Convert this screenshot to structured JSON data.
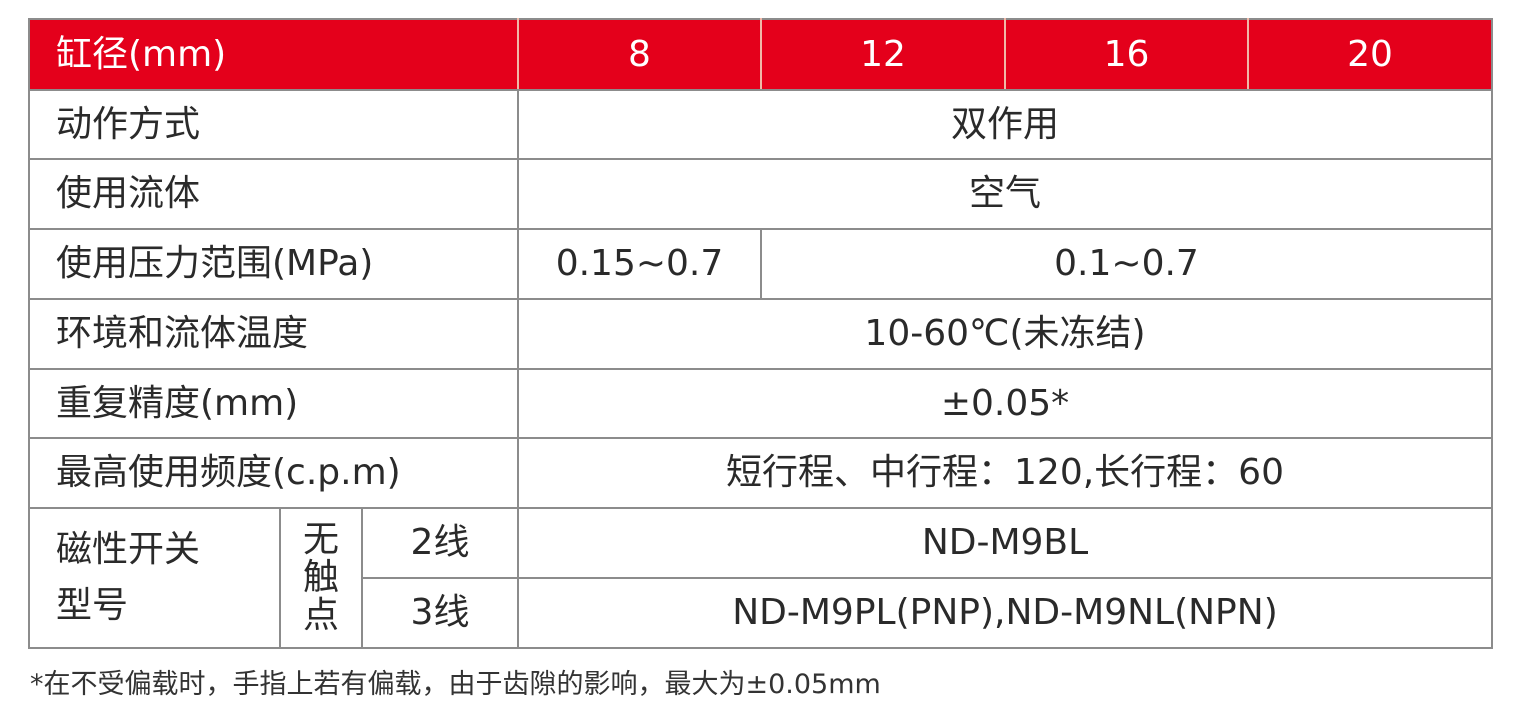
{
  "colors": {
    "header_bg": "#e4001b",
    "header_text": "#ffffff",
    "border": "#8c8c8c",
    "text": "#2a2a2a"
  },
  "header": {
    "label": "缸径(mm)",
    "bores": [
      "8",
      "12",
      "16",
      "20"
    ]
  },
  "rows": {
    "action": {
      "label": "动作方式",
      "value": "双作用"
    },
    "fluid": {
      "label": "使用流体",
      "value": "空气"
    },
    "pressure": {
      "label": "使用压力范围(MPa)",
      "value_small": "0.15~0.7",
      "value_other": "0.1~0.7"
    },
    "temperature": {
      "label": "环境和流体温度",
      "value": "10-60℃(未冻结)"
    },
    "repeatability": {
      "label": "重复精度(mm)",
      "value": "±0.05*"
    },
    "frequency": {
      "label": "最高使用频度(c.p.m)",
      "value": "短行程、中行程：120,长行程：60"
    },
    "switch": {
      "label_line1": "磁性开关",
      "label_line2": "型号",
      "type_chars": [
        "无",
        "触",
        "点"
      ],
      "wire2": {
        "label": "2线",
        "value": "ND-M9BL"
      },
      "wire3": {
        "label": "3线",
        "value": "ND-M9PL(PNP),ND-M9NL(NPN)"
      }
    }
  },
  "footnote": "*在不受偏载时，手指上若有偏载，由于齿隙的影响，最大为±0.05mm"
}
